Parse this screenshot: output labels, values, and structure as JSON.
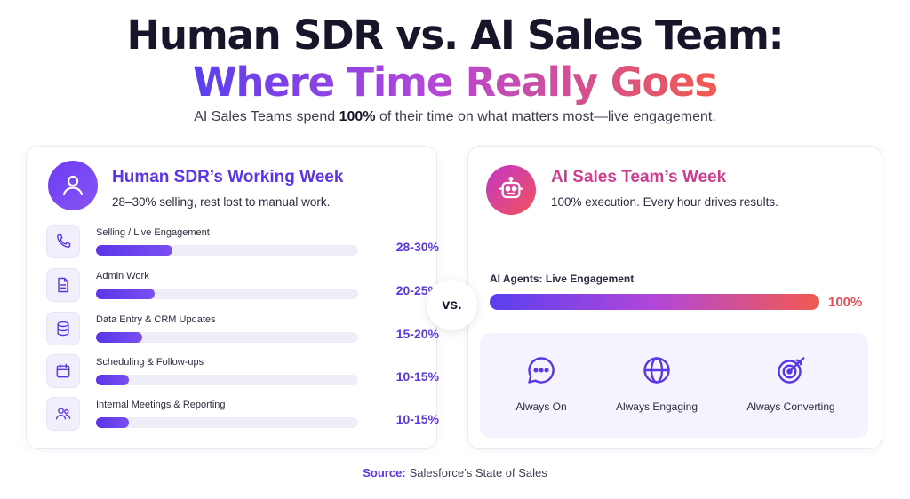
{
  "header": {
    "title_line1": "Human SDR vs. AI Sales Team:",
    "title_line2": "Where Time Really Goes",
    "subtitle_pre": "AI Sales Teams spend ",
    "subtitle_bold": "100%",
    "subtitle_post": " of their time on what matters most—live engagement."
  },
  "human_card": {
    "title": "Human SDR’s Working Week",
    "subtitle": "28–30% selling, rest lost to manual work.",
    "icon": "person-icon"
  },
  "ai_card": {
    "title": "AI Sales Team’s Week",
    "subtitle": "100% execution. Every hour drives results.",
    "icon": "robot-icon",
    "bar_label": "AI Agents: Live Engagement",
    "bar_value": "100%",
    "features": [
      {
        "label": "Always On",
        "icon": "chat-bubble-icon"
      },
      {
        "label": "Always Engaging",
        "icon": "globe-icon"
      },
      {
        "label": "Always Converting",
        "icon": "target-icon"
      }
    ]
  },
  "vs_label": "vs.",
  "source": {
    "label": "Source:",
    "text": "Salesforce’s State of Sales"
  },
  "colors": {
    "accent_purple": "#5b36e6",
    "accent_red": "#ef4a51",
    "gradient_start": "#5b3ff0",
    "gradient_end": "#f25a4f"
  },
  "chart_data": [
    {
      "type": "bar",
      "orientation": "horizontal",
      "title": "Human SDR’s Working Week",
      "categories": [
        "Selling / Live Engagement",
        "Admin Work",
        "Data Entry & CRM Updates",
        "Scheduling & Follow-ups",
        "Internal Meetings & Reporting"
      ],
      "value_labels": [
        "28-30%",
        "20-25%",
        "15-20%",
        "10-15%",
        "10-15%"
      ],
      "values": [
        29,
        22.5,
        17.5,
        12.5,
        12.5
      ],
      "xlim": [
        0,
        100
      ],
      "icons": [
        "phone-icon",
        "document-icon",
        "database-icon",
        "calendar-icon",
        "people-icon"
      ]
    },
    {
      "type": "bar",
      "orientation": "horizontal",
      "title": "AI Sales Team’s Week",
      "categories": [
        "AI Agents: Live Engagement"
      ],
      "value_labels": [
        "100%"
      ],
      "values": [
        100
      ],
      "xlim": [
        0,
        100
      ]
    }
  ]
}
